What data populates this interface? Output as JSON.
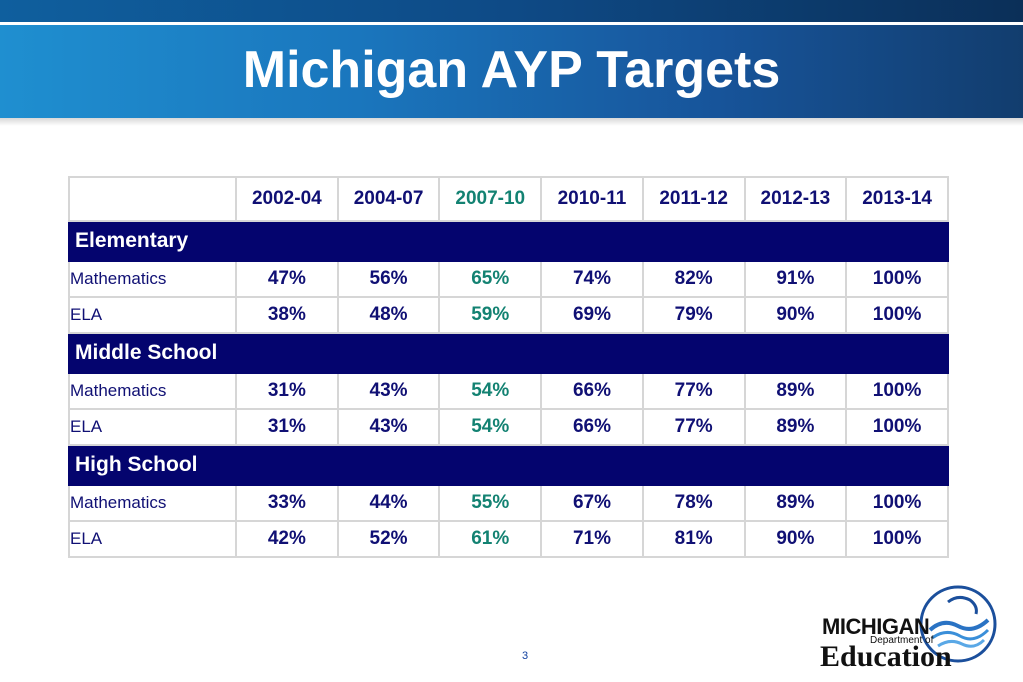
{
  "title": "Michigan AYP Targets",
  "page_number": "3",
  "columns": [
    "2002-04",
    "2004-07",
    "2007-10",
    "2010-11",
    "2011-12",
    "2012-13",
    "2013-14"
  ],
  "sections": [
    {
      "name": "Elementary",
      "rows": [
        {
          "subject": "Mathematics",
          "values": [
            "47%",
            "56%",
            "65%",
            "74%",
            "82%",
            "91%",
            "100%"
          ]
        },
        {
          "subject": "ELA",
          "values": [
            "38%",
            "48%",
            "59%",
            "69%",
            "79%",
            "90%",
            "100%"
          ]
        }
      ]
    },
    {
      "name": "Middle School",
      "rows": [
        {
          "subject": "Mathematics",
          "values": [
            "31%",
            "43%",
            "54%",
            "66%",
            "77%",
            "89%",
            "100%"
          ]
        },
        {
          "subject": "ELA",
          "values": [
            "31%",
            "43%",
            "54%",
            "66%",
            "77%",
            "89%",
            "100%"
          ]
        }
      ]
    },
    {
      "name": "High School",
      "rows": [
        {
          "subject": "Mathematics",
          "values": [
            "33%",
            "44%",
            "55%",
            "67%",
            "78%",
            "89%",
            "100%"
          ]
        },
        {
          "subject": "ELA",
          "values": [
            "42%",
            "52%",
            "61%",
            "71%",
            "81%",
            "90%",
            "100%"
          ]
        }
      ]
    }
  ],
  "logo": {
    "line1": "MICHIGAN",
    "line2": "Department of",
    "line3": "Education"
  },
  "colors": {
    "header_band": "#04046e",
    "text_navy": "#101074",
    "highlight_teal": "#138272"
  }
}
